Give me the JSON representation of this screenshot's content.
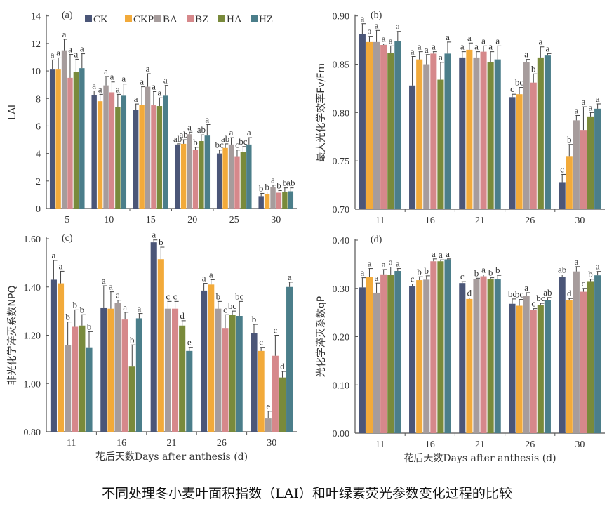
{
  "caption": "不同处理冬小麦叶面积指数（LAI）和叶绿素荧光参数变化过程的比较",
  "legend": [
    {
      "name": "CK",
      "color": "#4b5678"
    },
    {
      "name": "CKP",
      "color": "#f2aa3a"
    },
    {
      "name": "BA",
      "color": "#a69c9c"
    },
    {
      "name": "BZ",
      "color": "#d6888b"
    },
    {
      "name": "HA",
      "color": "#798a3b"
    },
    {
      "name": "HZ",
      "color": "#4b7e8a"
    }
  ],
  "chart_data": [
    {
      "type": "bar",
      "panel": "(a)",
      "ylabel": "LAI",
      "xlabel": "",
      "ylim": [
        0,
        14
      ],
      "yticks": [
        "0",
        "2",
        "4",
        "6",
        "8",
        "10",
        "12",
        "14"
      ],
      "categories": [
        "5",
        "10",
        "15",
        "20",
        "25",
        "30"
      ],
      "series": [
        {
          "name": "CK",
          "values": [
            10.15,
            8.25,
            7.15,
            4.65,
            4.0,
            0.9
          ],
          "errors": [
            0.65,
            0.3,
            0.45,
            0.05,
            0.25,
            0.2
          ],
          "letters": [
            "a",
            "a",
            "a",
            "ab",
            "bc",
            "b"
          ]
        },
        {
          "name": "CKP",
          "values": [
            10.15,
            7.8,
            7.55,
            4.7,
            4.4,
            1.05
          ],
          "errors": [
            0.8,
            0.5,
            1.3,
            0.3,
            0.3,
            0.15
          ],
          "letters": [
            "a",
            "a",
            "a",
            "ab",
            "ab",
            "b"
          ]
        },
        {
          "name": "BA",
          "values": [
            11.5,
            8.95,
            8.85,
            5.4,
            4.65,
            1.55
          ],
          "errors": [
            0.8,
            0.65,
            0.95,
            0.15,
            0.5,
            0.15
          ],
          "letters": [
            "a",
            "a",
            "a",
            "a",
            "a",
            "a"
          ]
        },
        {
          "name": "BZ",
          "values": [
            9.5,
            8.45,
            7.5,
            4.25,
            3.8,
            1.15
          ],
          "errors": [
            1.7,
            0.75,
            1.0,
            0.2,
            0.45,
            0.15
          ],
          "letters": [
            "a",
            "a",
            "a",
            "b",
            "c",
            "b"
          ]
        },
        {
          "name": "HA",
          "values": [
            9.95,
            7.4,
            7.45,
            4.9,
            4.1,
            1.2
          ],
          "errors": [
            0.9,
            0.9,
            0.6,
            0.45,
            0.4,
            0.3
          ],
          "letters": [
            "a",
            "a",
            "a",
            "ab",
            "bc",
            "b"
          ]
        },
        {
          "name": "HZ",
          "values": [
            10.2,
            8.2,
            8.2,
            5.3,
            4.65,
            1.25
          ],
          "errors": [
            1.05,
            0.85,
            0.75,
            0.8,
            0.5,
            0.25
          ],
          "letters": [
            "a",
            "a",
            "a",
            "a",
            "a",
            "ab"
          ]
        }
      ]
    },
    {
      "type": "bar",
      "panel": "(b)",
      "ylabel": "最大光化学效率Fv/Fm",
      "xlabel": "",
      "ylim": [
        0.7,
        0.9
      ],
      "yticks": [
        "0.70",
        "0.75",
        "0.80",
        "0.85",
        "0.90"
      ],
      "categories": [
        "11",
        "16",
        "21",
        "26",
        "30"
      ],
      "series": [
        {
          "name": "CK",
          "values": [
            0.881,
            0.828,
            0.857,
            0.816,
            0.728
          ],
          "errors": [
            0.011,
            0.03,
            0.006,
            0.003,
            0.008
          ],
          "letters": [
            "a",
            "a",
            "a",
            "c",
            "c"
          ]
        },
        {
          "name": "CKP",
          "values": [
            0.873,
            0.855,
            0.865,
            0.819,
            0.755
          ],
          "errors": [
            0.006,
            0.008,
            0.007,
            0.007,
            0.012
          ],
          "letters": [
            "a",
            "a",
            "a",
            "bc",
            "b"
          ]
        },
        {
          "name": "BA",
          "values": [
            0.873,
            0.85,
            0.857,
            0.852,
            0.792
          ],
          "errors": [
            0.012,
            0.01,
            0.006,
            0.003,
            0.005
          ],
          "letters": [
            "a",
            "a",
            "a",
            "a",
            "a"
          ]
        },
        {
          "name": "BZ",
          "values": [
            0.87,
            0.861,
            0.863,
            0.831,
            0.782
          ],
          "errors": [
            0.001,
            0.002,
            0.006,
            0.009,
            0.024
          ],
          "letters": [
            "a",
            "a",
            "a",
            "b",
            "a"
          ]
        },
        {
          "name": "HA",
          "values": [
            0.862,
            0.834,
            0.852,
            0.857,
            0.796
          ],
          "errors": [
            0.007,
            0.018,
            0.011,
            0.011,
            0.004
          ],
          "letters": [
            "a",
            "a",
            "a",
            "a",
            "a"
          ]
        },
        {
          "name": "HZ",
          "values": [
            0.874,
            0.861,
            0.855,
            0.859,
            0.804
          ],
          "errors": [
            0.01,
            0.012,
            0.014,
            0.002,
            0.005
          ],
          "letters": [
            "a",
            "a",
            "a",
            "a",
            "a"
          ]
        }
      ]
    },
    {
      "type": "bar",
      "panel": "(c)",
      "ylabel": "非光化学淬灭系数NPQ",
      "xlabel": "花后天数Days after anthesis (d)",
      "ylim": [
        0.8,
        1.6
      ],
      "yticks": [
        "0.80",
        "1.00",
        "1.20",
        "1.40",
        "1.60"
      ],
      "categories": [
        "11",
        "16",
        "21",
        "26",
        "30"
      ],
      "series": [
        {
          "name": "CK",
          "values": [
            1.43,
            1.315,
            1.585,
            1.385,
            1.21
          ],
          "errors": [
            0.08,
            0.09,
            0.01,
            0.03,
            0.035
          ],
          "letters": [
            "a",
            "a",
            "a",
            "a",
            "b"
          ]
        },
        {
          "name": "CKP",
          "values": [
            1.415,
            1.31,
            1.515,
            1.41,
            1.135
          ],
          "errors": [
            0.05,
            0.07,
            0.05,
            0.02,
            0.015
          ],
          "letters": [
            "a",
            "a",
            "b",
            "a",
            "c"
          ]
        },
        {
          "name": "BA",
          "values": [
            1.16,
            1.335,
            1.31,
            1.31,
            0.855
          ],
          "errors": [
            0.095,
            0.01,
            0.03,
            0.03,
            0.03
          ],
          "letters": [
            "b",
            "a",
            "c",
            "b",
            "e"
          ]
        },
        {
          "name": "BZ",
          "values": [
            1.235,
            1.265,
            1.31,
            1.23,
            1.115
          ],
          "errors": [
            0.07,
            0.03,
            0.03,
            0.055,
            0.085
          ],
          "letters": [
            "b",
            "a",
            "c",
            "c",
            "c"
          ]
        },
        {
          "name": "HA",
          "values": [
            1.24,
            1.07,
            1.24,
            1.285,
            1.025
          ],
          "errors": [
            0.045,
            0.09,
            0.02,
            0.015,
            0.025
          ],
          "letters": [
            "b",
            "b",
            "d",
            "bc",
            "d"
          ]
        },
        {
          "name": "HZ",
          "values": [
            1.15,
            1.27,
            1.135,
            1.28,
            1.4
          ],
          "errors": [
            0.065,
            0.02,
            0.015,
            0.06,
            0.02
          ],
          "letters": [
            "b",
            "a",
            "e",
            "bc",
            "a"
          ]
        }
      ]
    },
    {
      "type": "bar",
      "panel": "(d)",
      "ylabel": "光化学淬灭系数qP",
      "xlabel": "花后天数Days after anthesis (d)",
      "ylim": [
        0,
        0.4
      ],
      "yticks": [
        "0.00",
        "0.10",
        "0.20",
        "0.30",
        "0.40"
      ],
      "categories": [
        "11",
        "16",
        "21",
        "26",
        "30"
      ],
      "series": [
        {
          "name": "CK",
          "values": [
            0.302,
            0.305,
            0.311,
            0.268,
            0.323
          ],
          "errors": [
            0.02,
            0.004,
            0.003,
            0.01,
            0.005
          ],
          "letters": [
            "a",
            "c",
            "c",
            "bc",
            "ab"
          ]
        },
        {
          "name": "CKP",
          "values": [
            0.323,
            0.317,
            0.278,
            0.264,
            0.275
          ],
          "errors": [
            0.018,
            0.007,
            0.002,
            0.013,
            0.004
          ],
          "letters": [
            "a",
            "b",
            "d",
            "bc",
            "d"
          ]
        },
        {
          "name": "BA",
          "values": [
            0.291,
            0.318,
            0.32,
            0.285,
            0.335
          ],
          "errors": [
            0.02,
            0.008,
            0.001,
            0.006,
            0.01
          ],
          "letters": [
            "a",
            "b",
            "b",
            "a",
            "a"
          ]
        },
        {
          "name": "BZ",
          "values": [
            0.329,
            0.356,
            0.325,
            0.256,
            0.293
          ],
          "errors": [
            0.01,
            0.005,
            0.003,
            0.002,
            0.007
          ],
          "letters": [
            "a",
            "a",
            "a",
            "c",
            "c"
          ]
        },
        {
          "name": "HA",
          "values": [
            0.328,
            0.356,
            0.319,
            0.265,
            0.315
          ],
          "errors": [
            0.016,
            0.003,
            0.003,
            0.004,
            0.004
          ],
          "letters": [
            "a",
            "a",
            "b",
            "bc",
            "b"
          ]
        },
        {
          "name": "HZ",
          "values": [
            0.336,
            0.36,
            0.319,
            0.275,
            0.327
          ],
          "errors": [
            0.005,
            0.001,
            0.008,
            0.006,
            0.008
          ],
          "letters": [
            "a",
            "a",
            "b",
            "ab",
            "a"
          ]
        }
      ]
    }
  ]
}
